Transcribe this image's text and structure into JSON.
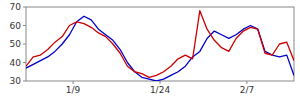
{
  "chart_data": {
    "type": "line",
    "x": [
      0,
      1,
      2,
      3,
      4,
      5,
      6,
      7,
      8,
      9,
      10,
      11,
      12,
      13,
      14,
      15,
      16,
      17,
      18,
      19,
      20,
      21,
      22,
      23,
      24,
      25,
      26,
      27,
      28,
      29,
      30,
      31,
      32,
      33,
      34,
      35,
      36,
      37
    ],
    "series": [
      {
        "color": "#0000cc",
        "values": [
          37,
          39,
          41,
          43,
          46,
          50,
          55,
          62,
          65,
          63,
          58,
          55,
          52,
          47,
          40,
          35,
          32,
          31,
          30,
          31,
          33,
          35,
          38,
          43,
          46,
          53,
          57,
          55,
          53,
          55,
          58,
          60,
          58,
          46,
          44,
          43,
          44,
          33
        ]
      },
      {
        "color": "#cc0000",
        "values": [
          38,
          43,
          44,
          47,
          51,
          54,
          60,
          62,
          61,
          59,
          56,
          54,
          50,
          45,
          38,
          35,
          34,
          32,
          33,
          35,
          38,
          42,
          44,
          42,
          68,
          58,
          52,
          48,
          46,
          53,
          57,
          59,
          58,
          45,
          44,
          50,
          51,
          41
        ]
      }
    ],
    "xlim": [
      0,
      37
    ],
    "ylim": [
      30,
      70
    ],
    "xticks": [
      {
        "value": 6.5,
        "label": "1/9"
      },
      {
        "value": 18.5,
        "label": "1/24"
      },
      {
        "value": 30.5,
        "label": "2/7"
      }
    ],
    "yticks": [
      30,
      40,
      50,
      60,
      70
    ],
    "grid": false
  }
}
